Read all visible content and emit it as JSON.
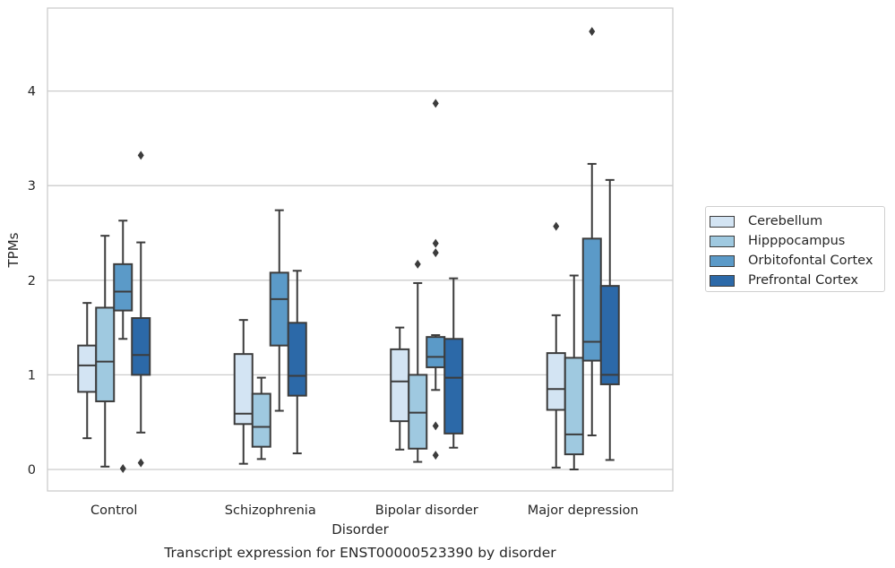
{
  "chart_data": {
    "type": "box",
    "title": "Transcript expression for ENST00000523390 by disorder",
    "xlabel": "Disorder",
    "ylabel": "TPMs",
    "ylim": [
      -0.22,
      4.9
    ],
    "yticks": [
      "0",
      "1",
      "2",
      "3",
      "4"
    ],
    "grid": "horizontal",
    "legend_position": "right",
    "categories": [
      "Control",
      "Schizophrenia",
      "Bipolar disorder",
      "Major depression"
    ],
    "series": [
      {
        "name": "Cerebellum",
        "color": "#d3e4f3",
        "boxes": [
          {
            "whisker_low": 0.33,
            "q1": 0.82,
            "median": 1.1,
            "q3": 1.31,
            "whisker_high": 1.76,
            "outliers": []
          },
          {
            "whisker_low": 0.06,
            "q1": 0.48,
            "median": 0.59,
            "q3": 1.22,
            "whisker_high": 1.58,
            "outliers": []
          },
          {
            "whisker_low": 0.21,
            "q1": 0.51,
            "median": 0.93,
            "q3": 1.27,
            "whisker_high": 1.5,
            "outliers": []
          },
          {
            "whisker_low": 0.02,
            "q1": 0.63,
            "median": 0.85,
            "q3": 1.23,
            "whisker_high": 1.63,
            "outliers": [
              2.57
            ]
          }
        ]
      },
      {
        "name": "Hipppocampus",
        "color": "#9fc9e0",
        "boxes": [
          {
            "whisker_low": 0.03,
            "q1": 0.72,
            "median": 1.14,
            "q3": 1.71,
            "whisker_high": 2.47,
            "outliers": []
          },
          {
            "whisker_low": 0.11,
            "q1": 0.24,
            "median": 0.45,
            "q3": 0.8,
            "whisker_high": 0.97,
            "outliers": []
          },
          {
            "whisker_low": 0.08,
            "q1": 0.22,
            "median": 0.6,
            "q3": 1.0,
            "whisker_high": 1.97,
            "outliers": [
              2.17
            ]
          },
          {
            "whisker_low": 0.0,
            "q1": 0.16,
            "median": 0.37,
            "q3": 1.18,
            "whisker_high": 2.05,
            "outliers": []
          }
        ]
      },
      {
        "name": "Orbitofontal Cortex",
        "color": "#5b9ac8",
        "boxes": [
          {
            "whisker_low": 1.38,
            "q1": 1.68,
            "median": 1.88,
            "q3": 2.17,
            "whisker_high": 2.63,
            "outliers": [
              0.01
            ]
          },
          {
            "whisker_low": 0.62,
            "q1": 1.31,
            "median": 1.8,
            "q3": 2.08,
            "whisker_high": 2.74,
            "outliers": []
          },
          {
            "whisker_low": 0.84,
            "q1": 1.08,
            "median": 1.19,
            "q3": 1.4,
            "whisker_high": 1.42,
            "outliers": [
              3.87,
              2.39,
              2.29,
              0.46,
              0.15
            ]
          },
          {
            "whisker_low": 0.36,
            "q1": 1.15,
            "median": 1.35,
            "q3": 2.44,
            "whisker_high": 3.23,
            "outliers": [
              4.63
            ]
          }
        ]
      },
      {
        "name": "Prefrontal Cortex",
        "color": "#2c69a8",
        "boxes": [
          {
            "whisker_low": 0.39,
            "q1": 1.0,
            "median": 1.21,
            "q3": 1.6,
            "whisker_high": 2.4,
            "outliers": [
              3.32,
              0.07
            ]
          },
          {
            "whisker_low": 0.17,
            "q1": 0.78,
            "median": 0.99,
            "q3": 1.55,
            "whisker_high": 2.1,
            "outliers": []
          },
          {
            "whisker_low": 0.23,
            "q1": 0.38,
            "median": 0.97,
            "q3": 1.38,
            "whisker_high": 2.02,
            "outliers": []
          },
          {
            "whisker_low": 0.1,
            "q1": 0.9,
            "median": 1.0,
            "q3": 1.94,
            "whisker_high": 3.06,
            "outliers": []
          }
        ]
      }
    ]
  }
}
